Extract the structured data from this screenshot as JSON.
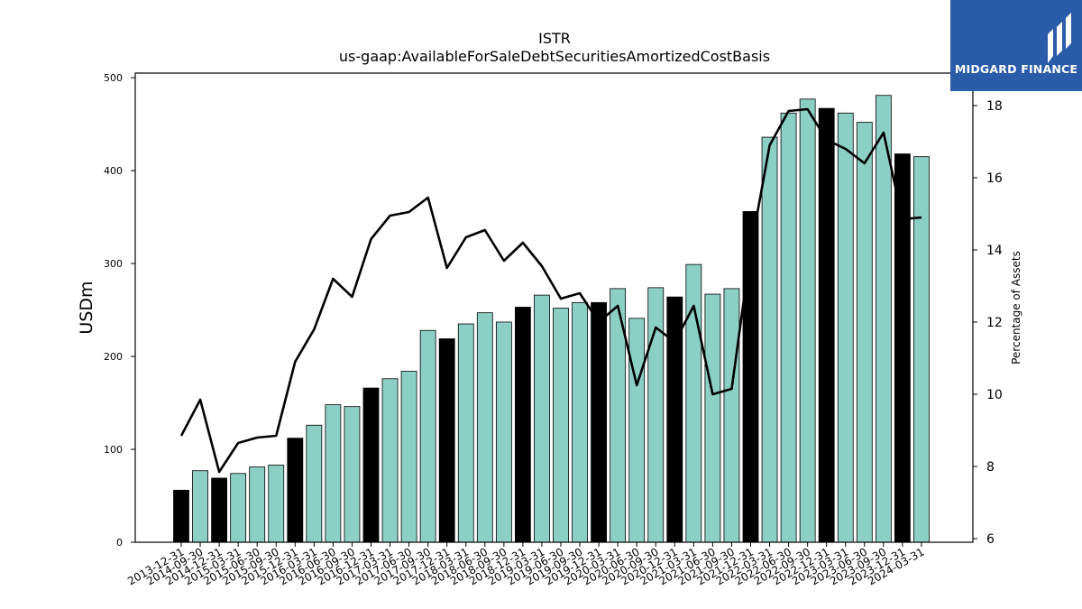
{
  "chart_data": {
    "type": "bar",
    "title": "ISTR",
    "subtitle": "us-gaap:AvailableForSaleDebtSecuritiesAmortizedCostBasis",
    "ylabel": "USDm",
    "y2label": "Percentage of Assets",
    "ylim": [
      0,
      505
    ],
    "y2lim": [
      5.9,
      18.9
    ],
    "yticks": [
      0,
      100,
      200,
      300,
      400,
      500
    ],
    "y2ticks": [
      6,
      8,
      10,
      12,
      14,
      16,
      18
    ],
    "categories": [
      "2013-12-31",
      "2014-09-30",
      "2014-12-31",
      "2015-03-31",
      "2015-06-30",
      "2015-09-30",
      "2015-12-31",
      "2016-03-31",
      "2016-06-30",
      "2016-09-30",
      "2016-12-31",
      "2017-03-31",
      "2017-06-30",
      "2017-09-30",
      "2017-12-31",
      "2018-03-31",
      "2018-06-30",
      "2018-09-30",
      "2018-12-31",
      "2019-03-31",
      "2019-06-30",
      "2019-09-30",
      "2019-12-31",
      "2020-03-31",
      "2020-06-30",
      "2020-09-30",
      "2020-12-31",
      "2021-03-31",
      "2021-06-30",
      "2021-09-30",
      "2021-12-31",
      "2022-03-31",
      "2022-06-30",
      "2022-09-30",
      "2022-12-31",
      "2023-03-31",
      "2023-06-30",
      "2023-09-30",
      "2023-12-31",
      "2024-03-31"
    ],
    "series": [
      {
        "kind": "bar",
        "values": [
          56,
          77,
          69,
          74,
          81,
          83,
          112,
          126,
          148,
          146,
          166,
          176,
          184,
          228,
          219,
          235,
          247,
          237,
          253,
          266,
          252,
          258,
          258,
          273,
          241,
          274,
          264,
          299,
          267,
          273,
          356,
          436,
          462,
          477,
          467,
          462,
          452,
          481,
          418,
          415
        ],
        "color": "#8ccfc4",
        "highlight_color": "#000000",
        "highlight_labels": [
          "2013-12-31",
          "2014-12-31",
          "2015-12-31",
          "2016-12-31",
          "2017-12-31",
          "2018-12-31",
          "2019-12-31",
          "2020-12-31",
          "2021-12-31",
          "2022-12-31",
          "2023-12-31"
        ]
      },
      {
        "kind": "line",
        "axis": "right",
        "values": [
          8.85,
          9.85,
          7.85,
          8.65,
          8.8,
          8.85,
          10.9,
          11.8,
          13.2,
          12.7,
          14.3,
          14.95,
          15.05,
          15.45,
          13.5,
          14.35,
          14.55,
          13.7,
          14.2,
          13.55,
          12.65,
          12.8,
          12.0,
          12.45,
          10.25,
          11.85,
          11.45,
          12.45,
          10.0,
          10.15,
          14.0,
          16.9,
          17.85,
          17.9,
          17.05,
          16.8,
          16.4,
          17.25,
          14.85,
          14.9
        ],
        "color": "#000000"
      }
    ]
  },
  "logo": {
    "text": "MIDGARD FINANCE",
    "color": "#2a5caa"
  }
}
